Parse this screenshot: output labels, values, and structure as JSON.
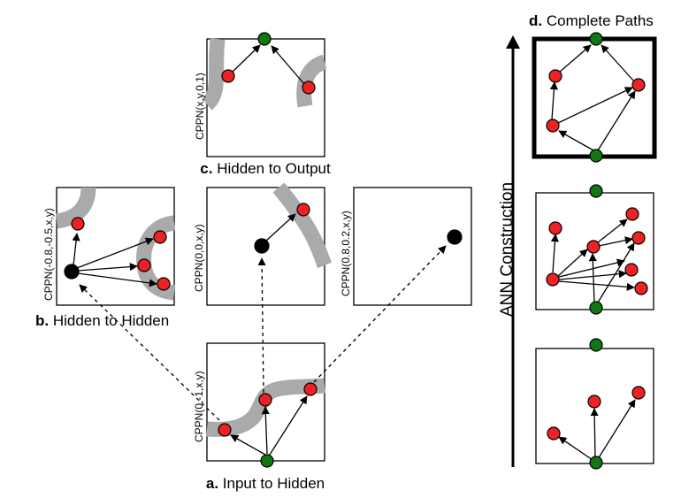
{
  "captions": {
    "a_letter": "a.",
    "a_text": "Input to Hidden",
    "b_letter": "b.",
    "b_text": "Hidden to Hidden",
    "c_letter": "c.",
    "c_text": "Hidden to Output",
    "d_letter": "d.",
    "d_text": "Complete Paths"
  },
  "cppn_labels": {
    "input_hidden": "CPPN(0,-1,x,y)",
    "hidden_output": "CPPN(x,y,0,1)",
    "hidden_left": "CPPN(-0.8,-0.5,x,y)",
    "hidden_center": "CPPN(0,0,x,y)",
    "hidden_right": "CPPN(0.8,0.2,x,y)"
  },
  "axis_label": "ANN Construction",
  "colors": {
    "hidden_node": "#ee2222",
    "io_node": "#117711",
    "query_node": "#000000",
    "band": "#aaaaaa"
  }
}
